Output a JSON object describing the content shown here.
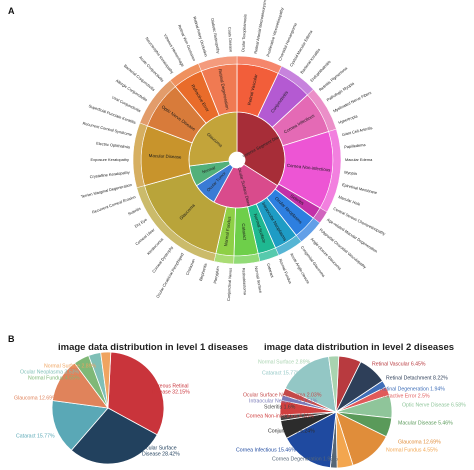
{
  "panels": {
    "a_label": "A",
    "b_label": "B"
  },
  "colors": {
    "Vitreous Retinal Disease": "#d0343a",
    "Ocular Surface Disease": "#1f3e5c",
    "Cataract": "#58a8b8",
    "Glaucoma": "#e08a5e",
    "Normal Fundus": "#8fc07a",
    "Normal Surface": "#f0a36a"
  },
  "chart_data": [
    {
      "type": "sunburst",
      "center_label": "Fundus Disease",
      "inner_ring": [
        {
          "name": "Posterior Segment Disease",
          "value": 34,
          "color": "#a72d38"
        },
        {
          "name": "Ocular Surface Disease",
          "value": 24,
          "color": "#d94b8c"
        },
        {
          "name": "Ocular Tumor",
          "value": 8,
          "color": "#3a7bd5"
        },
        {
          "name": "Normal",
          "value": 7,
          "color": "#52b07a"
        },
        {
          "name": "Glaucoma",
          "value": 27,
          "color": "#c3a43a"
        }
      ],
      "middle_ring": [
        {
          "name": "Retinal Vascular",
          "value": 7,
          "color": "#f25e3a"
        },
        {
          "name": "Conjunctivitis",
          "value": 6,
          "color": "#b45ad2"
        },
        {
          "name": "Cornea Infectious",
          "value": 7,
          "color": "#e46ab5"
        },
        {
          "name": "Cornea Non-infectious",
          "value": 13,
          "color": "#ed55d4"
        },
        {
          "name": "Scleritis",
          "value": 2,
          "color": "#c230a8"
        },
        {
          "name": "Ocular Neoplasms",
          "value": 4,
          "color": "#2d7fe0"
        },
        {
          "name": "Intraocular Neoplasms",
          "value": 4,
          "color": "#1e9cc5"
        },
        {
          "name": "Normal Surface",
          "value": 3,
          "color": "#1fb891"
        },
        {
          "name": "Cataract",
          "value": 4,
          "color": "#6ecf4a"
        },
        {
          "name": "Normal Fundus",
          "value": 3,
          "color": "#8ed046"
        },
        {
          "name": "Glaucoma",
          "value": 17,
          "color": "#b9a43a"
        },
        {
          "name": "Macular Disease",
          "value": 10,
          "color": "#c8942c"
        },
        {
          "name": "Optic Nerve Disease",
          "value": 8,
          "color": "#d87b3a"
        },
        {
          "name": "Refractive Error",
          "value": 5,
          "color": "#e96c2a"
        },
        {
          "name": "Retinal Degeneration",
          "value": 6,
          "color": "#f07a52"
        }
      ],
      "outer_labels": [
        "Ocular Toxoplasmosis",
        "Retinal Arterial Macroaneurysm",
        "Proliferative Vitreoretinopathy",
        "Choroidal Hemangioma",
        "Cystoid Macular Edema",
        "Bacterial Keratitis",
        "Endophthalmitis",
        "Retinitis Pigmentosa",
        "Pathologic Myopia",
        "Myelinated Nerve Fibers",
        "Hypertropia",
        "Giant Cell Arteritis",
        "Papilledema",
        "Macular Edema",
        "Myopia",
        "Epiretinal Membrane",
        "Macular Hole",
        "Central Serous Chorioretinopathy",
        "Age-related Macular Degeneration",
        "Polypoidal Choroidal Vasculopathy",
        "Angle-closure Glaucoma",
        "Congenital Glaucoma",
        "Acute Angle-closure",
        "Normal Fundus",
        "Cataract",
        "Normal Surface",
        "Retinoblastoma",
        "Conjunctival Nevus",
        "Pterygium",
        "Blepharitis",
        "Chalazion",
        "Ocular Cicatricial Pemphigoid",
        "Corneal Dystrophy",
        "Keratoconus",
        "Corneal Ulcer",
        "Dry Eye",
        "Scleritis",
        "Recurrent Corneal Erosion",
        "Terrien Marginal Degeneration",
        "Crystalline Keratopathy",
        "Exposure Keratopathy",
        "Electric Ophthalmia",
        "Recurrent Corneal Syndrome",
        "Superficial Punctate Keratitis",
        "Viral Conjunctivitis",
        "Allergic Conjunctivitis",
        "Bacterial Conjunctivitis",
        "Acute Conjunctivitis",
        "Neurotrophic Keratopathy",
        "Vitreous Hemorrhage",
        "Retinal Vein Occlusion",
        "Retinal Artery Occlusion",
        "Diabetic Retinopathy",
        "Coats Disease"
      ]
    },
    {
      "type": "pie",
      "title": "image data distribution in level 1 diseases",
      "labels": [
        "Vitreous Retinal Disease",
        "Ocular Surface Disease",
        "Cataract",
        "Glaucoma",
        "Normal Fundus",
        "Ocular Neoplasma",
        "Normal Surface"
      ],
      "values": [
        32.15,
        28.42,
        15.77,
        12.69,
        4.55,
        3.53,
        2.89
      ],
      "colors": [
        "#c9343b",
        "#22415e",
        "#5aa8b6",
        "#e0835b",
        "#7fb877",
        "#7fbfb6",
        "#efa460"
      ],
      "label_texts": [
        "Vitreous Retinal\nDisease 32.15%",
        "Ocular Surface\nDisease 28.42%",
        "Cataract 15.77%",
        "Glaucoma 12.69%",
        "Normal Fundus 4.55%",
        "Ocular Neoplasma 3.53%",
        "Normal Surface 2.89%"
      ]
    },
    {
      "type": "pie",
      "title": "image data distribution in level 2 diseases",
      "labels": [
        "Retinal Vascular",
        "Retinal Detachment",
        "Retinal Degeneration",
        "Refractive Error",
        "Optic Nerve Disease",
        "Macular Disease",
        "Glaucoma",
        "Normal Fundus",
        "Cornea Degeneration",
        "Cornea Infectious",
        "Conjunctivitis",
        "Scleritis",
        "Cornea Non-infectious",
        "Intraocular Neoplasma",
        "Ocular Surface Neoplasma",
        "Cataract",
        "Normal Surface"
      ],
      "values": [
        6.45,
        8.22,
        1.94,
        2.5,
        6.58,
        5.46,
        12.69,
        4.55,
        1.93,
        15.46,
        5.24,
        1.6,
        4.18,
        1.51,
        2.03,
        15.77,
        2.89
      ],
      "colors": [
        "#b83a3f",
        "#2e3f59",
        "#3f6eb8",
        "#e05a5a",
        "#8fc59a",
        "#5a9a5a",
        "#e08d3a",
        "#f3a64f",
        "#556677",
        "#1f4aa0",
        "#2c2c2c",
        "#444444",
        "#d04040",
        "#7a7ab8",
        "#c44a4a",
        "#93c7c5",
        "#a9d3b0"
      ],
      "label_texts": [
        "Retinal Vascular 6.45%",
        "Retinal Detachment 8.22%",
        "Retinal Degeneration 1.94%",
        "Refractive Error 2.5%",
        "Optic Nerve Disease 6.58%",
        "Macular Disease 5.46%",
        "Glaucoma 12.69%",
        "Normal Fundus 4.55%",
        "Cornea Degeneration 1.93%",
        "Cornea Infectious 15.46%",
        "Conjunctivitis 5.24%",
        "Scleritis 1.6%",
        "Cornea Non-infectious 4.18%",
        "Intraocular Neoplasma 1.51%",
        "Ocular Surface Neoplasma 2.03%",
        "Cataract 15.77%",
        "Normal Surface 2.89%"
      ]
    }
  ]
}
